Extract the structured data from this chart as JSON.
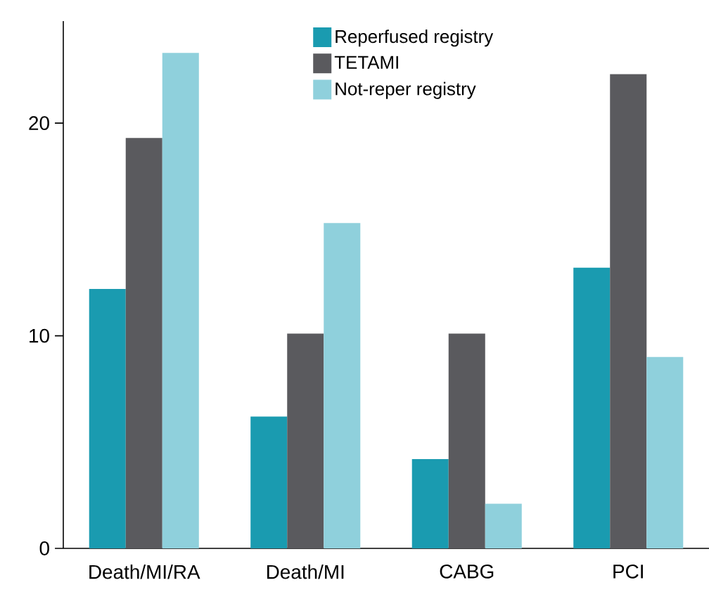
{
  "chart_data": {
    "type": "bar",
    "categories": [
      "Death/MI/RA",
      "Death/MI",
      "CABG",
      "PCI"
    ],
    "series": [
      {
        "name": "Reperfused registry",
        "color": "#1a9bb0",
        "values": [
          12.2,
          6.2,
          4.2,
          13.2
        ]
      },
      {
        "name": "TETAMI",
        "color": "#5a5a5e",
        "values": [
          19.3,
          10.1,
          10.1,
          22.3
        ]
      },
      {
        "name": "Not-reper registry",
        "color": "#8fd0dc",
        "values": [
          23.3,
          15.3,
          2.1,
          9.0
        ]
      }
    ],
    "ylim": [
      0,
      24.8
    ],
    "yticks": [
      0,
      10,
      20
    ],
    "grid": false,
    "legend": "top"
  }
}
